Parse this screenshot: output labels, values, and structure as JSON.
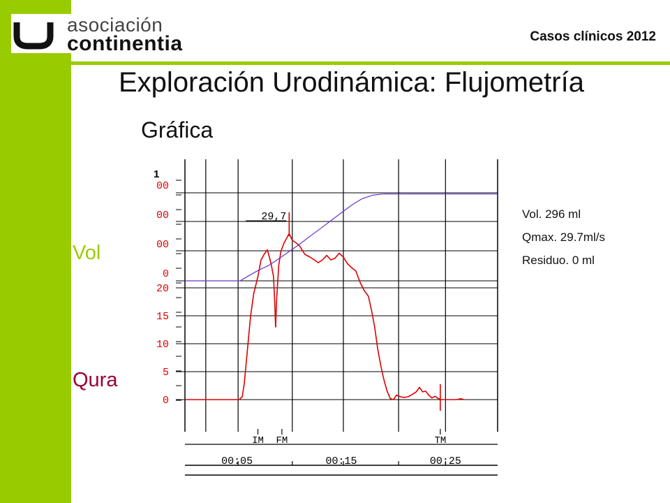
{
  "header": {
    "logo_line1": "asociación",
    "logo_line2": "continentia",
    "event": "Casos clínicos 2012"
  },
  "slide": {
    "title": "Exploración Urodinámica: Flujometría",
    "subtitle": "Gráfica",
    "vol_label": "Vol",
    "qura_label": "Qura"
  },
  "stats": {
    "volume": "Vol. 296 ml",
    "qmax": "Qmax. 29.7ml/s",
    "residual": "Residuo. 0 ml"
  },
  "colors": {
    "accent_green": "#99cc00",
    "flow_red": "#dd0000",
    "volume_purple": "#6633cc",
    "qura_maroon": "#990033"
  },
  "chart_data": {
    "type": "line",
    "x_unit": "s",
    "x_range": [
      0,
      30
    ],
    "time_ticks": [
      {
        "t": 5,
        "label": "00:05"
      },
      {
        "t": 15,
        "label": "00:15"
      },
      {
        "t": 25,
        "label": "00:25"
      }
    ],
    "markers": [
      {
        "t": 7.0,
        "label": "IM"
      },
      {
        "t": 9.3,
        "label": "FM"
      },
      {
        "t": 24.5,
        "label": "TM"
      }
    ],
    "qmax_annotation": "29,7",
    "flow_axis": {
      "range": [
        0,
        20
      ],
      "ticks": [
        {
          "v": 0,
          "label": "0"
        },
        {
          "v": 5,
          "label": "5"
        },
        {
          "v": 10,
          "label": "10"
        },
        {
          "v": 15,
          "label": "15"
        },
        {
          "v": 20,
          "label": "20"
        }
      ]
    },
    "volume_axis": {
      "range": [
        0,
        300
      ],
      "ticks": [
        {
          "v": 0,
          "label": "0"
        },
        {
          "v": 100,
          "label": "00"
        },
        {
          "v": 200,
          "label": "00"
        },
        {
          "v": 300,
          "label": "00"
        }
      ],
      "top_label": "1"
    },
    "series": [
      {
        "key": "flow",
        "points": [
          [
            0,
            0
          ],
          [
            5.2,
            0
          ],
          [
            5.5,
            0.5
          ],
          [
            5.7,
            3
          ],
          [
            6,
            9
          ],
          [
            6.3,
            15
          ],
          [
            6.6,
            19
          ],
          [
            7,
            22
          ],
          [
            7.3,
            25
          ],
          [
            7.6,
            26
          ],
          [
            7.9,
            26.8
          ],
          [
            8.1,
            25.5
          ],
          [
            8.3,
            24
          ],
          [
            8.5,
            22
          ],
          [
            8.6,
            18
          ],
          [
            8.7,
            13
          ],
          [
            8.8,
            18
          ],
          [
            9,
            24
          ],
          [
            9.2,
            26.5
          ],
          [
            9.5,
            28
          ],
          [
            9.8,
            29
          ],
          [
            10,
            29.7
          ],
          [
            10.3,
            28.5
          ],
          [
            10.7,
            28
          ],
          [
            11,
            27.5
          ],
          [
            11.5,
            26
          ],
          [
            12,
            25.5
          ],
          [
            12.4,
            25
          ],
          [
            12.8,
            24.5
          ],
          [
            13.2,
            25
          ],
          [
            13.6,
            25.8
          ],
          [
            14,
            25
          ],
          [
            14.4,
            25.3
          ],
          [
            14.8,
            26.2
          ],
          [
            15.2,
            25.5
          ],
          [
            15.6,
            24.3
          ],
          [
            16,
            23.6
          ],
          [
            16.4,
            23
          ],
          [
            16.8,
            21
          ],
          [
            17.2,
            19.5
          ],
          [
            17.6,
            18.5
          ],
          [
            17.9,
            16
          ],
          [
            18.2,
            13
          ],
          [
            18.5,
            9
          ],
          [
            18.8,
            6
          ],
          [
            19.1,
            3.5
          ],
          [
            19.4,
            1.5
          ],
          [
            19.7,
            0.2
          ],
          [
            20.0,
            0
          ],
          [
            20.3,
            0.8
          ],
          [
            20.7,
            0.5
          ],
          [
            21.0,
            0.4
          ],
          [
            21.4,
            0.5
          ],
          [
            21.8,
            0.9
          ],
          [
            22.2,
            1.4
          ],
          [
            22.5,
            2.2
          ],
          [
            22.8,
            1.4
          ],
          [
            23.1,
            1.5
          ],
          [
            23.4,
            0.8
          ],
          [
            23.7,
            0.3
          ],
          [
            24.0,
            0.6
          ],
          [
            24.3,
            0.2
          ],
          [
            24.6,
            0
          ],
          [
            26,
            0
          ],
          [
            26.5,
            0.15
          ],
          [
            26.8,
            0
          ]
        ]
      },
      {
        "key": "volume",
        "points": [
          [
            0,
            0
          ],
          [
            5.3,
            0
          ],
          [
            6,
            15
          ],
          [
            7,
            35
          ],
          [
            8,
            52
          ],
          [
            9,
            75
          ],
          [
            10,
            100
          ],
          [
            11,
            125
          ],
          [
            12,
            152
          ],
          [
            13,
            178
          ],
          [
            14,
            205
          ],
          [
            15,
            232
          ],
          [
            16,
            258
          ],
          [
            17,
            280
          ],
          [
            18,
            292
          ],
          [
            19,
            296
          ],
          [
            20,
            296
          ],
          [
            30,
            296
          ]
        ]
      }
    ]
  }
}
